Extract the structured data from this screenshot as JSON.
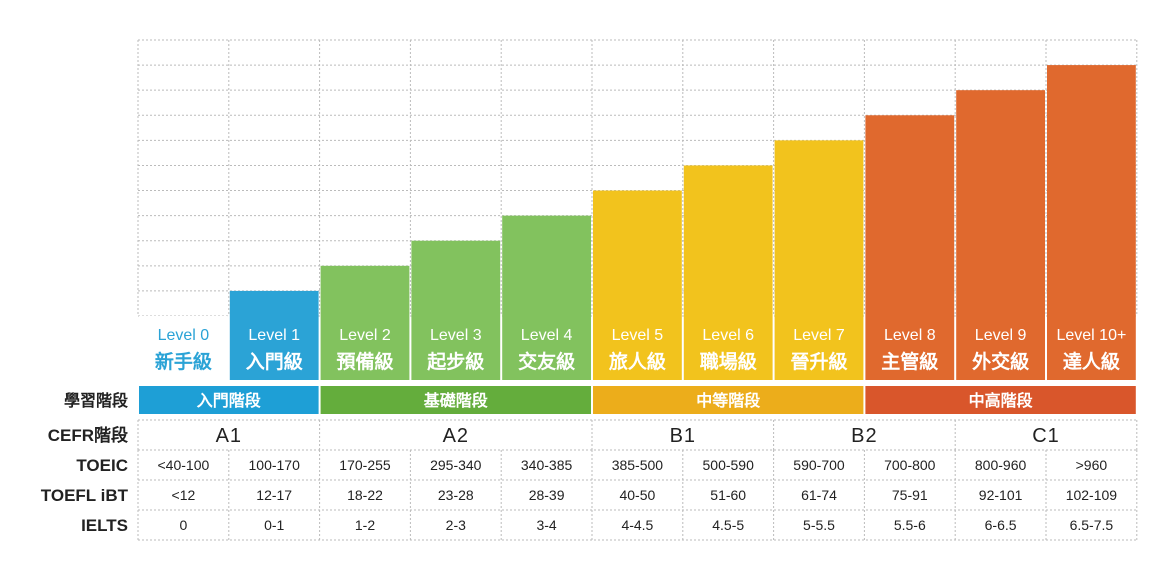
{
  "chart_data": {
    "type": "bar",
    "categories": [
      "Level 0",
      "Level 1",
      "Level 2",
      "Level 3",
      "Level 4",
      "Level 5",
      "Level 6",
      "Level 7",
      "Level 8",
      "Level 9",
      "Level 10+"
    ],
    "sublabels": [
      "新手級",
      "入門級",
      "預備級",
      "起步級",
      "交友級",
      "旅人級",
      "職場級",
      "晉升級",
      "主管級",
      "外交級",
      "達人級"
    ],
    "values": [
      0,
      1,
      2,
      3,
      4,
      5,
      6,
      7,
      8,
      9,
      10
    ],
    "ylim": [
      0,
      11
    ],
    "grid": true,
    "colors": {
      "level0_text": "#2ba3d6",
      "blue": "#2ba3d6",
      "green": "#82c25e",
      "yellow": "#f2c31d",
      "orange": "#e0692e",
      "stage_blue": "#1e9fd6",
      "stage_green": "#64ad3c",
      "stage_yellow": "#ecad1b",
      "stage_orange": "#d9562b",
      "grid": "#bbbbbb",
      "label_text": "#222222"
    },
    "bar_color_groups": [
      "blue",
      "blue",
      "green",
      "green",
      "green",
      "yellow",
      "yellow",
      "yellow",
      "orange",
      "orange",
      "orange"
    ],
    "stages": {
      "row_label": "學習階段",
      "items": [
        {
          "label": "入門階段",
          "span": [
            0,
            1
          ],
          "color": "stage_blue"
        },
        {
          "label": "基礎階段",
          "span": [
            2,
            4
          ],
          "color": "stage_green"
        },
        {
          "label": "中等階段",
          "span": [
            5,
            7
          ],
          "color": "stage_yellow"
        },
        {
          "label": "中高階段",
          "span": [
            8,
            10
          ],
          "color": "stage_orange"
        }
      ]
    },
    "cefr": {
      "row_label": "CEFR階段",
      "items": [
        {
          "label": "A1",
          "span": [
            0,
            1
          ]
        },
        {
          "label": "A2",
          "span": [
            2,
            4
          ]
        },
        {
          "label": "B1",
          "span": [
            5,
            6
          ]
        },
        {
          "label": "B2",
          "span": [
            7,
            8
          ]
        },
        {
          "label": "C1",
          "span": [
            9,
            10
          ]
        }
      ]
    },
    "table": [
      {
        "label": "TOEIC",
        "cells": [
          "<40-100",
          "100-170",
          "170-255",
          "295-340",
          "340-385",
          "385-500",
          "500-590",
          "590-700",
          "700-800",
          "800-960",
          ">960"
        ]
      },
      {
        "label": "TOEFL iBT",
        "cells": [
          "<12",
          "12-17",
          "18-22",
          "23-28",
          "28-39",
          "40-50",
          "51-60",
          "61-74",
          "75-91",
          "92-101",
          "102-109"
        ]
      },
      {
        "label": "IELTS",
        "cells": [
          "0",
          "0-1",
          "1-2",
          "2-3",
          "3-4",
          "4-4.5",
          "4.5-5",
          "5-5.5",
          "5.5-6",
          "6-6.5",
          "6.5-7.5"
        ]
      }
    ]
  }
}
